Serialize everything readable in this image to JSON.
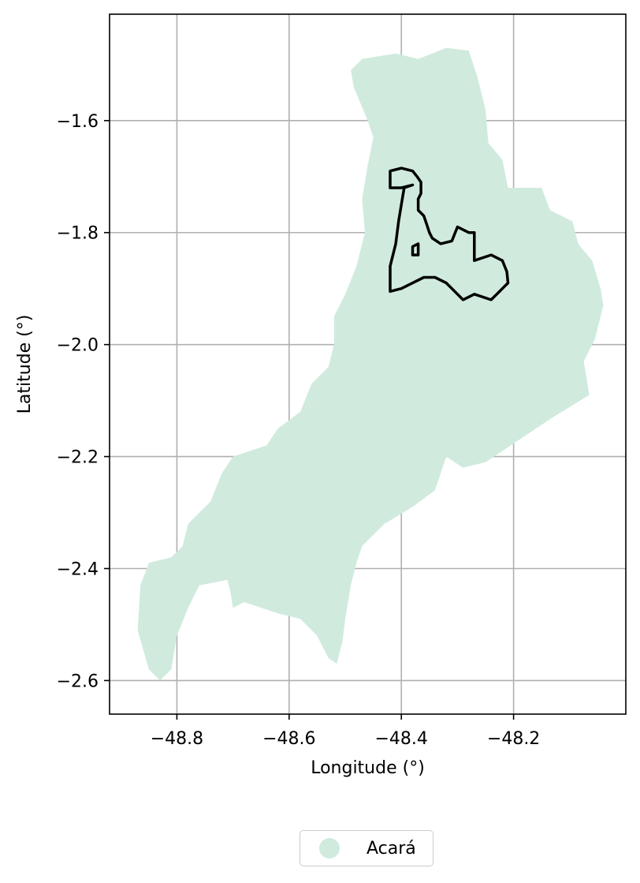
{
  "chart_data": {
    "type": "map",
    "xlabel": "Longitude (°)",
    "ylabel": "Latitude (°)",
    "xlim": [
      -48.92,
      -48.0
    ],
    "ylim": [
      -2.66,
      -1.41
    ],
    "x_ticks": [
      -48.8,
      -48.6,
      -48.4,
      -48.2
    ],
    "y_ticks": [
      -1.6,
      -1.8,
      -2.0,
      -2.2,
      -2.4,
      -2.6
    ],
    "x_tick_labels": [
      "−48.8",
      "−48.6",
      "−48.4",
      "−48.2"
    ],
    "y_tick_labels": [
      "−1.6",
      "−1.8",
      "−2.0",
      "−2.2",
      "−2.4",
      "−2.6"
    ],
    "grid": true,
    "legend_position": "bottom-center",
    "regions": [
      {
        "name": "Acará",
        "color": "#d0ebde",
        "outline": [
          [
            -48.32,
            -1.47
          ],
          [
            -48.28,
            -1.475
          ],
          [
            -48.265,
            -1.52
          ],
          [
            -48.25,
            -1.58
          ],
          [
            -48.245,
            -1.64
          ],
          [
            -48.22,
            -1.67
          ],
          [
            -48.21,
            -1.72
          ],
          [
            -48.15,
            -1.72
          ],
          [
            -48.135,
            -1.76
          ],
          [
            -48.095,
            -1.78
          ],
          [
            -48.085,
            -1.82
          ],
          [
            -48.06,
            -1.85
          ],
          [
            -48.045,
            -1.9
          ],
          [
            -48.04,
            -1.93
          ],
          [
            -48.055,
            -1.99
          ],
          [
            -48.075,
            -2.03
          ],
          [
            -48.065,
            -2.09
          ],
          [
            -48.13,
            -2.13
          ],
          [
            -48.19,
            -2.17
          ],
          [
            -48.25,
            -2.21
          ],
          [
            -48.29,
            -2.22
          ],
          [
            -48.32,
            -2.2
          ],
          [
            -48.34,
            -2.26
          ],
          [
            -48.38,
            -2.29
          ],
          [
            -48.43,
            -2.32
          ],
          [
            -48.47,
            -2.36
          ],
          [
            -48.48,
            -2.39
          ],
          [
            -48.49,
            -2.43
          ],
          [
            -48.5,
            -2.49
          ],
          [
            -48.505,
            -2.53
          ],
          [
            -48.51,
            -2.55
          ],
          [
            -48.515,
            -2.57
          ],
          [
            -48.53,
            -2.56
          ],
          [
            -48.55,
            -2.52
          ],
          [
            -48.58,
            -2.49
          ],
          [
            -48.62,
            -2.48
          ],
          [
            -48.68,
            -2.46
          ],
          [
            -48.7,
            -2.47
          ],
          [
            -48.705,
            -2.44
          ],
          [
            -48.71,
            -2.42
          ],
          [
            -48.76,
            -2.43
          ],
          [
            -48.78,
            -2.47
          ],
          [
            -48.8,
            -2.52
          ],
          [
            -48.81,
            -2.58
          ],
          [
            -48.83,
            -2.6
          ],
          [
            -48.85,
            -2.58
          ],
          [
            -48.87,
            -2.51
          ],
          [
            -48.865,
            -2.43
          ],
          [
            -48.85,
            -2.39
          ],
          [
            -48.81,
            -2.38
          ],
          [
            -48.79,
            -2.36
          ],
          [
            -48.78,
            -2.32
          ],
          [
            -48.74,
            -2.28
          ],
          [
            -48.72,
            -2.23
          ],
          [
            -48.7,
            -2.2
          ],
          [
            -48.64,
            -2.18
          ],
          [
            -48.62,
            -2.15
          ],
          [
            -48.58,
            -2.12
          ],
          [
            -48.56,
            -2.07
          ],
          [
            -48.53,
            -2.04
          ],
          [
            -48.52,
            -2.0
          ],
          [
            -48.52,
            -1.95
          ],
          [
            -48.5,
            -1.91
          ],
          [
            -48.48,
            -1.86
          ],
          [
            -48.465,
            -1.8
          ],
          [
            -48.47,
            -1.74
          ],
          [
            -48.46,
            -1.68
          ],
          [
            -48.45,
            -1.63
          ],
          [
            -48.46,
            -1.6
          ],
          [
            -48.485,
            -1.54
          ],
          [
            -48.49,
            -1.51
          ],
          [
            -48.47,
            -1.49
          ],
          [
            -48.41,
            -1.48
          ],
          [
            -48.37,
            -1.49
          ]
        ]
      }
    ],
    "boundary": {
      "color": "#000000",
      "outline": [
        [
          -48.42,
          -1.69
        ],
        [
          -48.4,
          -1.685
        ],
        [
          -48.38,
          -1.69
        ],
        [
          -48.372,
          -1.7
        ],
        [
          -48.365,
          -1.71
        ],
        [
          -48.365,
          -1.73
        ],
        [
          -48.37,
          -1.74
        ],
        [
          -48.37,
          -1.76
        ],
        [
          -48.36,
          -1.77
        ],
        [
          -48.355,
          -1.785
        ],
        [
          -48.35,
          -1.8
        ],
        [
          -48.345,
          -1.81
        ],
        [
          -48.33,
          -1.82
        ],
        [
          -48.31,
          -1.815
        ],
        [
          -48.3,
          -1.79
        ],
        [
          -48.28,
          -1.8
        ],
        [
          -48.27,
          -1.8
        ],
        [
          -48.27,
          -1.85
        ],
        [
          -48.24,
          -1.84
        ],
        [
          -48.22,
          -1.85
        ],
        [
          -48.212,
          -1.87
        ],
        [
          -48.21,
          -1.89
        ],
        [
          -48.22,
          -1.9
        ],
        [
          -48.23,
          -1.91
        ],
        [
          -48.24,
          -1.92
        ],
        [
          -48.27,
          -1.91
        ],
        [
          -48.29,
          -1.92
        ],
        [
          -48.3,
          -1.91
        ],
        [
          -48.31,
          -1.9
        ],
        [
          -48.32,
          -1.89
        ],
        [
          -48.34,
          -1.88
        ],
        [
          -48.36,
          -1.88
        ],
        [
          -48.38,
          -1.89
        ],
        [
          -48.4,
          -1.9
        ],
        [
          -48.42,
          -1.905
        ],
        [
          -48.42,
          -1.89
        ],
        [
          -48.42,
          -1.86
        ],
        [
          -48.41,
          -1.82
        ],
        [
          -48.405,
          -1.78
        ],
        [
          -48.4,
          -1.75
        ],
        [
          -48.395,
          -1.72
        ],
        [
          -48.38,
          -1.715
        ],
        [
          -48.4,
          -1.72
        ],
        [
          -48.42,
          -1.72
        ],
        [
          -48.42,
          -1.7
        ]
      ],
      "inner": [
        [
          -48.38,
          -1.825
        ],
        [
          -48.37,
          -1.82
        ],
        [
          -48.37,
          -1.84
        ],
        [
          -48.38,
          -1.84
        ]
      ]
    }
  },
  "legend": {
    "items": [
      {
        "label": "Acará",
        "color": "#d0ebde"
      }
    ]
  }
}
